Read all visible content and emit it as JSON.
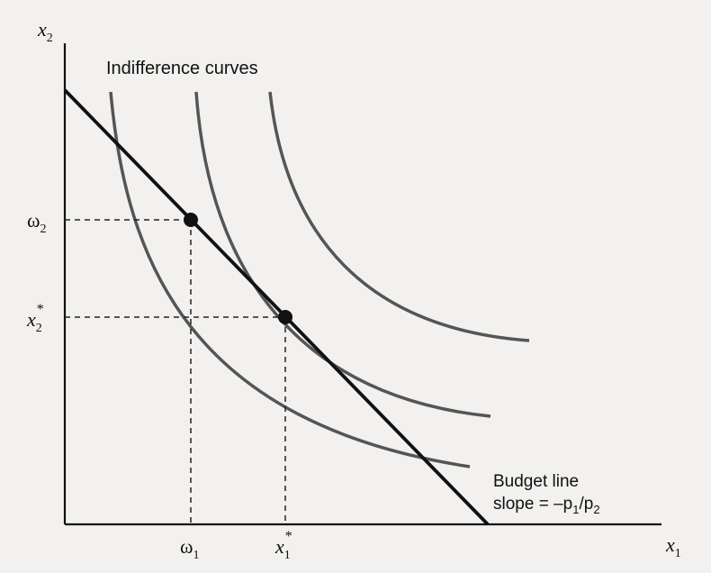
{
  "axes": {
    "y_label": "x",
    "y_label_sub": "2",
    "x_label": "x",
    "x_label_sub": "1"
  },
  "labels": {
    "indifference_curves": "Indifference curves",
    "budget_line_line1": "Budget line",
    "budget_line_slope_prefix": "slope = –p",
    "budget_line_slope_sub1": "1",
    "budget_line_slope_mid": "/p",
    "budget_line_slope_sub2": "2"
  },
  "ticks": {
    "omega1": "ω",
    "omega1_sub": "1",
    "x1_star": "x",
    "x1_star_sub": "1",
    "x1_star_sup": "*",
    "omega2": "ω",
    "omega2_sub": "2",
    "x2_star": "x",
    "x2_star_sub": "2",
    "x2_star_sup": "*"
  },
  "points": [
    {
      "name": "endowment",
      "x_label": "ω1",
      "y_label": "ω2"
    },
    {
      "name": "optimal-choice",
      "x_label": "x1*",
      "y_label": "x2*"
    }
  ],
  "colors": {
    "axis": "#111111",
    "budget_line": "#111111",
    "curve": "#555555",
    "dashed": "#222222"
  }
}
